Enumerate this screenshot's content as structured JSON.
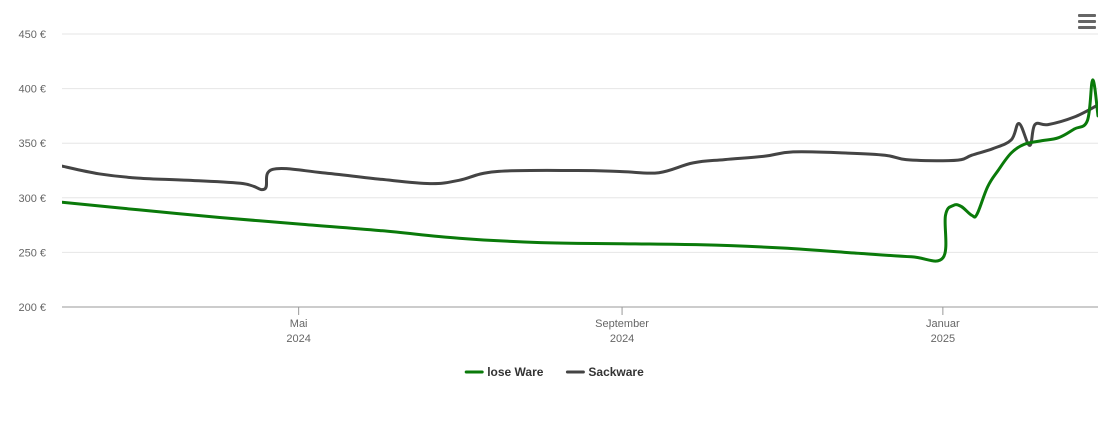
{
  "menu": {
    "icon": "hamburger-menu-icon"
  },
  "colors": {
    "lose_ware": "#0a7a0a",
    "sackware": "#444444",
    "grid": "#e6e6e6",
    "axis": "#999999"
  },
  "chart_data": {
    "type": "line",
    "title": "",
    "xlabel": "",
    "ylabel": "",
    "ylim": [
      200,
      450
    ],
    "xlim": [
      "2024-02-01",
      "2025-03-01"
    ],
    "y_ticks": [
      {
        "value": 200,
        "label": "200 €"
      },
      {
        "value": 250,
        "label": "250 €"
      },
      {
        "value": 300,
        "label": "300 €"
      },
      {
        "value": 350,
        "label": "350 €"
      },
      {
        "value": 400,
        "label": "400 €"
      },
      {
        "value": 450,
        "label": "450 €"
      }
    ],
    "x_ticks": [
      {
        "date": "2024-05-01",
        "line1": "Mai",
        "line2": "2024"
      },
      {
        "date": "2024-09-01",
        "line1": "September",
        "line2": "2024"
      },
      {
        "date": "2025-01-01",
        "line1": "Januar",
        "line2": "2025"
      }
    ],
    "grid": "horizontal",
    "legend_position": "bottom-center",
    "series": [
      {
        "name": "lose Ware",
        "color": "#0a7a0a",
        "points": [
          [
            "2024-02-01",
            296
          ],
          [
            "2024-03-01",
            289
          ],
          [
            "2024-04-01",
            282
          ],
          [
            "2024-05-01",
            276
          ],
          [
            "2024-06-01",
            270
          ],
          [
            "2024-07-01",
            263
          ],
          [
            "2024-08-01",
            259
          ],
          [
            "2024-09-01",
            258
          ],
          [
            "2024-10-01",
            257
          ],
          [
            "2024-11-01",
            254
          ],
          [
            "2024-12-01",
            249
          ],
          [
            "2024-12-20",
            246
          ],
          [
            "2025-01-01",
            245
          ],
          [
            "2025-01-02",
            284
          ],
          [
            "2025-01-05",
            293
          ],
          [
            "2025-01-08",
            292
          ],
          [
            "2025-01-12",
            284
          ],
          [
            "2025-01-14",
            285
          ],
          [
            "2025-01-18",
            310
          ],
          [
            "2025-01-22",
            325
          ],
          [
            "2025-01-27",
            341
          ],
          [
            "2025-02-01",
            349
          ],
          [
            "2025-02-07",
            352
          ],
          [
            "2025-02-14",
            355
          ],
          [
            "2025-02-20",
            363
          ],
          [
            "2025-02-25",
            371
          ],
          [
            "2025-02-27",
            408
          ],
          [
            "2025-03-01",
            375
          ]
        ]
      },
      {
        "name": "Sackware",
        "color": "#444444",
        "points": [
          [
            "2024-02-01",
            329
          ],
          [
            "2024-02-15",
            322
          ],
          [
            "2024-03-01",
            318
          ],
          [
            "2024-03-20",
            316
          ],
          [
            "2024-04-10",
            313
          ],
          [
            "2024-04-18",
            308
          ],
          [
            "2024-04-21",
            326
          ],
          [
            "2024-05-10",
            323
          ],
          [
            "2024-06-01",
            317
          ],
          [
            "2024-06-20",
            313
          ],
          [
            "2024-07-01",
            316
          ],
          [
            "2024-07-15",
            324
          ],
          [
            "2024-08-15",
            325
          ],
          [
            "2024-09-01",
            324
          ],
          [
            "2024-09-15",
            323
          ],
          [
            "2024-09-28",
            332
          ],
          [
            "2024-10-10",
            335
          ],
          [
            "2024-10-25",
            338
          ],
          [
            "2024-11-05",
            342
          ],
          [
            "2024-11-25",
            341
          ],
          [
            "2024-12-10",
            339
          ],
          [
            "2024-12-18",
            335
          ],
          [
            "2025-01-01",
            334
          ],
          [
            "2025-01-08",
            335
          ],
          [
            "2025-01-12",
            339
          ],
          [
            "2025-01-20",
            345
          ],
          [
            "2025-01-27",
            353
          ],
          [
            "2025-01-30",
            368
          ],
          [
            "2025-02-03",
            348
          ],
          [
            "2025-02-05",
            367
          ],
          [
            "2025-02-10",
            367
          ],
          [
            "2025-02-20",
            374
          ],
          [
            "2025-03-01",
            385
          ]
        ]
      }
    ]
  }
}
